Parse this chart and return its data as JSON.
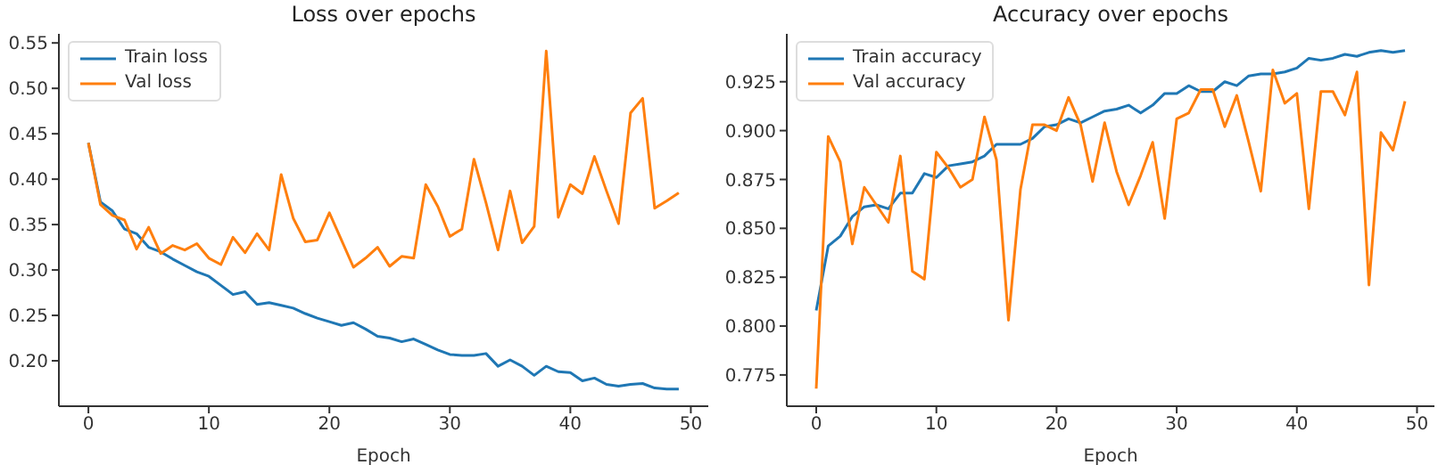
{
  "chart_data": [
    {
      "type": "line",
      "title": "Loss over epochs",
      "xlabel": "Epoch",
      "x": [
        0,
        1,
        2,
        3,
        4,
        5,
        6,
        7,
        8,
        9,
        10,
        11,
        12,
        13,
        14,
        15,
        16,
        17,
        18,
        19,
        20,
        21,
        22,
        23,
        24,
        25,
        26,
        27,
        28,
        29,
        30,
        31,
        32,
        33,
        34,
        35,
        36,
        37,
        38,
        39,
        40,
        41,
        42,
        43,
        44,
        45,
        46,
        47,
        48,
        49
      ],
      "series": [
        {
          "name": "Train loss",
          "color": "#1f77b4",
          "values": [
            0.44,
            0.375,
            0.365,
            0.345,
            0.34,
            0.325,
            0.32,
            0.312,
            0.305,
            0.298,
            0.293,
            0.283,
            0.273,
            0.276,
            0.262,
            0.264,
            0.261,
            0.258,
            0.252,
            0.247,
            0.243,
            0.239,
            0.242,
            0.235,
            0.227,
            0.225,
            0.221,
            0.224,
            0.218,
            0.212,
            0.207,
            0.206,
            0.206,
            0.208,
            0.194,
            0.201,
            0.194,
            0.184,
            0.194,
            0.188,
            0.187,
            0.178,
            0.181,
            0.174,
            0.172,
            0.174,
            0.175,
            0.17,
            0.169,
            0.169
          ]
        },
        {
          "name": "Val loss",
          "color": "#ff7f0e",
          "values": [
            0.44,
            0.372,
            0.36,
            0.355,
            0.323,
            0.347,
            0.318,
            0.327,
            0.322,
            0.329,
            0.313,
            0.306,
            0.336,
            0.319,
            0.34,
            0.322,
            0.405,
            0.357,
            0.331,
            0.333,
            0.363,
            0.333,
            0.303,
            0.313,
            0.325,
            0.304,
            0.315,
            0.313,
            0.394,
            0.37,
            0.337,
            0.345,
            0.422,
            0.374,
            0.322,
            0.387,
            0.33,
            0.348,
            0.541,
            0.358,
            0.394,
            0.384,
            0.425,
            0.387,
            0.351,
            0.473,
            0.489,
            0.368,
            0.376,
            0.385
          ]
        }
      ],
      "xlim": [
        -2.45,
        51.45
      ],
      "xticks": [
        0,
        10,
        20,
        30,
        40,
        50
      ],
      "ylim": [
        0.15,
        0.56
      ],
      "yticks": [
        {
          "value": 0.2,
          "label": "0.20"
        },
        0.25,
        {
          "value": 0.3,
          "label": "0.30"
        },
        0.35,
        {
          "value": 0.4,
          "label": "0.40"
        },
        0.45,
        {
          "value": 0.5,
          "label": "0.50"
        },
        0.55
      ],
      "legend": "top left",
      "grid": false
    },
    {
      "type": "line",
      "title": "Accuracy over epochs",
      "xlabel": "Epoch",
      "x": [
        0,
        1,
        2,
        3,
        4,
        5,
        6,
        7,
        8,
        9,
        10,
        11,
        12,
        13,
        14,
        15,
        16,
        17,
        18,
        19,
        20,
        21,
        22,
        23,
        24,
        25,
        26,
        27,
        28,
        29,
        30,
        31,
        32,
        33,
        34,
        35,
        36,
        37,
        38,
        39,
        40,
        41,
        42,
        43,
        44,
        45,
        46,
        47,
        48,
        49
      ],
      "series": [
        {
          "name": "Train accuracy",
          "color": "#1f77b4",
          "values": [
            0.808,
            0.841,
            0.846,
            0.856,
            0.861,
            0.862,
            0.86,
            0.868,
            0.868,
            0.878,
            0.876,
            0.882,
            0.883,
            0.884,
            0.887,
            0.893,
            0.893,
            0.893,
            0.896,
            0.902,
            0.903,
            0.906,
            0.904,
            0.907,
            0.91,
            0.911,
            0.913,
            0.909,
            0.913,
            0.919,
            0.919,
            0.923,
            0.92,
            0.92,
            0.925,
            0.923,
            0.928,
            0.929,
            0.929,
            0.93,
            0.932,
            0.937,
            0.936,
            0.937,
            0.939,
            0.938,
            0.94,
            0.941,
            0.94,
            0.941
          ]
        },
        {
          "name": "Val accuracy",
          "color": "#ff7f0e",
          "values": [
            0.768,
            0.897,
            0.884,
            0.842,
            0.871,
            0.862,
            0.853,
            0.887,
            0.828,
            0.824,
            0.889,
            0.881,
            0.871,
            0.875,
            0.907,
            0.885,
            0.803,
            0.87,
            0.903,
            0.903,
            0.9,
            0.917,
            0.903,
            0.874,
            0.904,
            0.879,
            0.862,
            0.877,
            0.894,
            0.855,
            0.906,
            0.909,
            0.921,
            0.921,
            0.902,
            0.918,
            0.894,
            0.869,
            0.931,
            0.914,
            0.919,
            0.86,
            0.92,
            0.92,
            0.908,
            0.93,
            0.821,
            0.899,
            0.89,
            0.915
          ]
        }
      ],
      "xlim": [
        -2.45,
        51.45
      ],
      "xticks": [
        0,
        10,
        20,
        30,
        40,
        50
      ],
      "ylim": [
        0.759,
        0.9495
      ],
      "yticks": [
        0.775,
        {
          "value": 0.8,
          "label": "0.800"
        },
        0.825,
        {
          "value": 0.85,
          "label": "0.850"
        },
        0.875,
        {
          "value": 0.9,
          "label": "0.900"
        },
        0.925
      ],
      "legend": "top left",
      "grid": false
    }
  ]
}
